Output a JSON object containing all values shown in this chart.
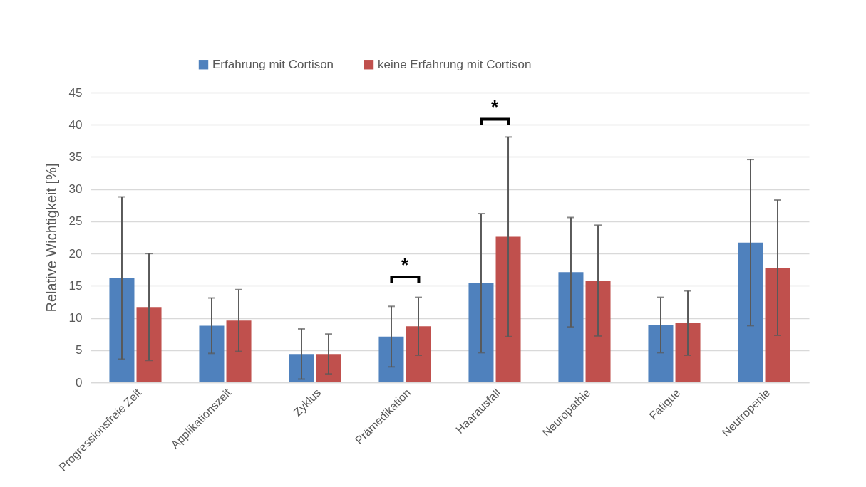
{
  "chart_data": {
    "type": "bar",
    "ylabel": "Relative Wichtigkeit [%]",
    "categories": [
      "Progressionsfreie Zeit",
      "Applikationszeit",
      "Zyklus",
      "Prämedikation",
      "Haarausfall",
      "Neuropathie",
      "Fatigue",
      "Neutropenie"
    ],
    "series": [
      {
        "name": "Erfahrung mit Cortison",
        "color": "#4f81bd",
        "values": [
          16.2,
          8.8,
          4.4,
          7.1,
          15.4,
          17.1,
          8.9,
          21.7
        ],
        "errors": [
          12.6,
          4.3,
          3.9,
          4.7,
          10.8,
          8.5,
          4.3,
          12.9
        ]
      },
      {
        "name": "keine Erfahrung mit Cortison",
        "color": "#c0504d",
        "values": [
          11.7,
          9.6,
          4.4,
          8.7,
          22.6,
          15.8,
          9.2,
          17.8
        ],
        "errors": [
          8.3,
          4.8,
          3.1,
          4.5,
          15.5,
          8.6,
          5.0,
          10.5
        ]
      }
    ],
    "ylim": [
      0,
      45
    ],
    "yticks": [
      0,
      5,
      10,
      15,
      20,
      25,
      30,
      35,
      40,
      45
    ],
    "grid": "y",
    "legend": "top",
    "annotations": [
      "*",
      "*"
    ]
  }
}
